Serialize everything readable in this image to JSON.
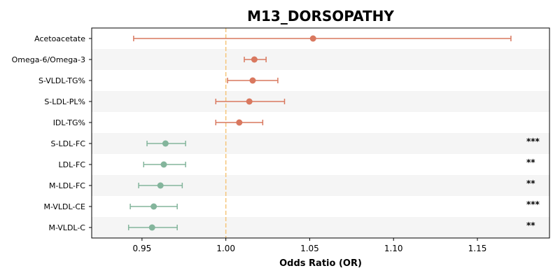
{
  "chart_data": {
    "type": "forest",
    "title": "M13_DORSOPATHY",
    "xlabel": "Odds Ratio (OR)",
    "xlim": [
      0.92,
      1.193
    ],
    "xticks": [
      "0.95",
      "1.00",
      "1.05",
      "1.10",
      "1.15"
    ],
    "xtick_values": [
      0.95,
      1.0,
      1.05,
      1.1,
      1.15
    ],
    "reference_line": 1.0,
    "colors": {
      "positive": "#d9785f",
      "negative": "#84b59c",
      "reference": "#f5c57a",
      "band": "#f5f5f5"
    },
    "rows": [
      {
        "label": "Acetoacetate",
        "or": 1.052,
        "lo": 0.945,
        "hi": 1.17,
        "sig": "",
        "color": "positive"
      },
      {
        "label": "Omega-6/Omega-3",
        "or": 1.017,
        "lo": 1.011,
        "hi": 1.024,
        "sig": "",
        "color": "positive"
      },
      {
        "label": "S-VLDL-TG%",
        "or": 1.016,
        "lo": 1.001,
        "hi": 1.031,
        "sig": "",
        "color": "positive"
      },
      {
        "label": "S-LDL-PL%",
        "or": 1.014,
        "lo": 0.994,
        "hi": 1.035,
        "sig": "",
        "color": "positive"
      },
      {
        "label": "IDL-TG%",
        "or": 1.008,
        "lo": 0.994,
        "hi": 1.022,
        "sig": "",
        "color": "positive"
      },
      {
        "label": "S-LDL-FC",
        "or": 0.964,
        "lo": 0.953,
        "hi": 0.976,
        "sig": "***",
        "color": "negative"
      },
      {
        "label": "LDL-FC",
        "or": 0.963,
        "lo": 0.951,
        "hi": 0.976,
        "sig": "**",
        "color": "negative"
      },
      {
        "label": "M-LDL-FC",
        "or": 0.961,
        "lo": 0.948,
        "hi": 0.974,
        "sig": "**",
        "color": "negative"
      },
      {
        "label": "M-VLDL-CE",
        "or": 0.957,
        "lo": 0.943,
        "hi": 0.971,
        "sig": "***",
        "color": "negative"
      },
      {
        "label": "M-VLDL-C",
        "or": 0.956,
        "lo": 0.942,
        "hi": 0.971,
        "sig": "**",
        "color": "negative"
      }
    ]
  }
}
